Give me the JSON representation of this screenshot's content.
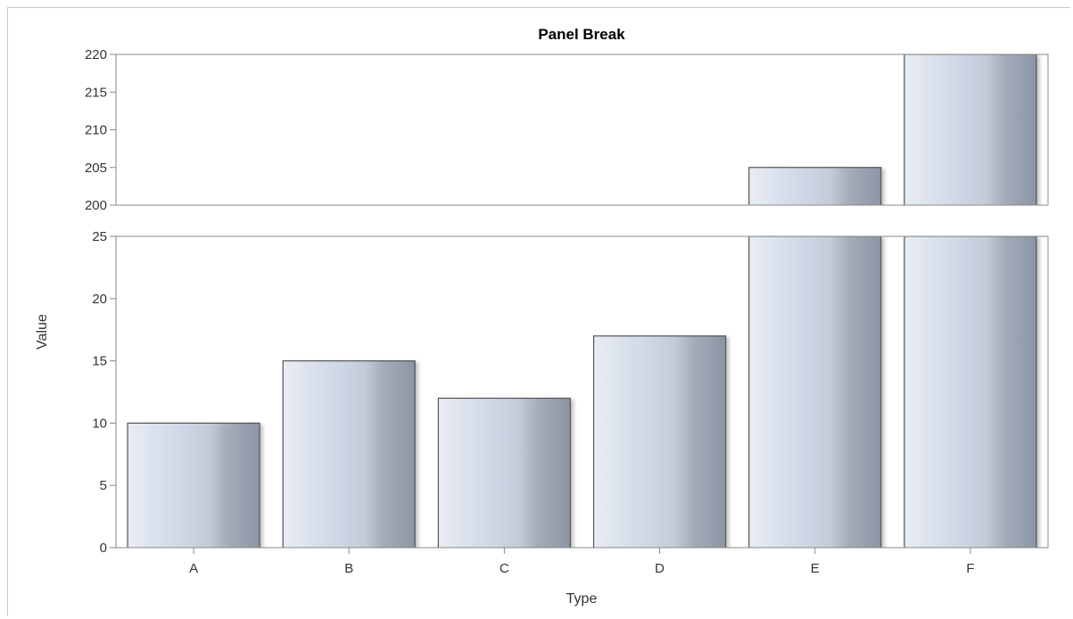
{
  "chart_data": {
    "type": "bar",
    "title": "Panel Break",
    "xlabel": "Type",
    "ylabel": "Value",
    "categories": [
      "A",
      "B",
      "C",
      "D",
      "E",
      "F"
    ],
    "values": [
      10,
      15,
      12,
      17,
      205,
      220
    ],
    "axis_break": true,
    "panels": [
      {
        "name": "upper",
        "ylim": [
          200,
          220
        ],
        "ticks": [
          200,
          205,
          210,
          215,
          220
        ]
      },
      {
        "name": "lower",
        "ylim": [
          0,
          25
        ],
        "ticks": [
          0,
          5,
          10,
          15,
          20,
          25
        ]
      }
    ],
    "grid": false,
    "legend": "none",
    "colors": {
      "bar_fill_light": "#e6eaf2",
      "bar_fill_mid": "#c9d3e3",
      "bar_fill_dark": "#8e97a6",
      "bar_outline": "#555555",
      "axis": "#888888"
    }
  }
}
